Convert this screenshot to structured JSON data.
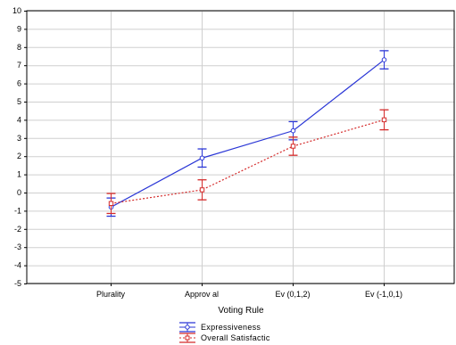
{
  "chart_data": {
    "type": "line",
    "xlabel": "Voting Rule",
    "ylabel": "",
    "categories": [
      "Plurality",
      "Approval",
      "Ev(0,1,2)",
      "Ev(-1,0,1)"
    ],
    "category_labels": [
      "Plurality",
      "Approv al",
      "Ev (0,1,2)",
      "Ev (-1,0,1)"
    ],
    "ylim": [
      -5,
      10
    ],
    "yticks": [
      -5,
      -4,
      -3,
      -2,
      -1,
      0,
      1,
      2,
      3,
      4,
      5,
      6,
      7,
      8,
      9,
      10
    ],
    "grid": true,
    "legend_position": "bottom-center",
    "series": [
      {
        "name": "Expressiveness",
        "color": "#2a36d6",
        "line_style": "solid",
        "values": [
          -0.8,
          1.9,
          3.4,
          7.3
        ],
        "error_low": [
          -1.3,
          1.4,
          2.9,
          6.8
        ],
        "error_high": [
          -0.3,
          2.4,
          3.9,
          7.8
        ]
      },
      {
        "name": "Overall Satisfaction",
        "legend_label": "Overall Satisfactic",
        "color": "#d42a2a",
        "line_style": "dotted",
        "values": [
          -0.6,
          0.15,
          2.55,
          4.0
        ],
        "error_low": [
          -1.15,
          -0.4,
          2.05,
          3.45
        ],
        "error_high": [
          -0.05,
          0.7,
          3.05,
          4.55
        ]
      }
    ]
  }
}
